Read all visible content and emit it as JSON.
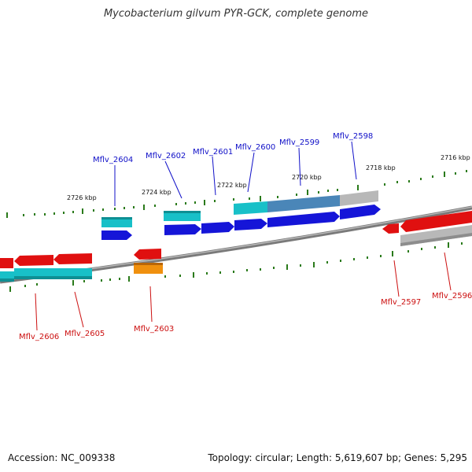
{
  "title": "Mycobacterium gilvum PYR-GCK, complete genome",
  "footer": {
    "accession": "Accession: NC_009338",
    "stats": "Topology: circular; Length: 5,619,607 bp; Genes: 5,295"
  },
  "colors": {
    "backbone": "#777777",
    "plus_gene": "#1515d8",
    "minus_gene": "#e01010",
    "cds_cyan": "#18c0c8",
    "cds_orange": "#f0900e",
    "cds_steel": "#4a86b8",
    "cds_gray": "#b8b8b8",
    "tick": "#2a7a1a",
    "plus_label": "#1010c8",
    "minus_label": "#cc1010"
  },
  "scale_labels": [
    "2726 kbp",
    "2724 kbp",
    "2722 kbp",
    "2720 kbp",
    "2718 kbp",
    "2716 kbp"
  ],
  "plus_gene_labels": [
    "Mflv_2604",
    "Mflv_2602",
    "Mflv_2601",
    "Mflv_2600",
    "Mflv_2599",
    "Mflv_2598"
  ],
  "minus_gene_labels": [
    "Mflv_2606",
    "Mflv_2605",
    "Mflv_2603",
    "Mflv_2597",
    "Mflv_2596"
  ]
}
